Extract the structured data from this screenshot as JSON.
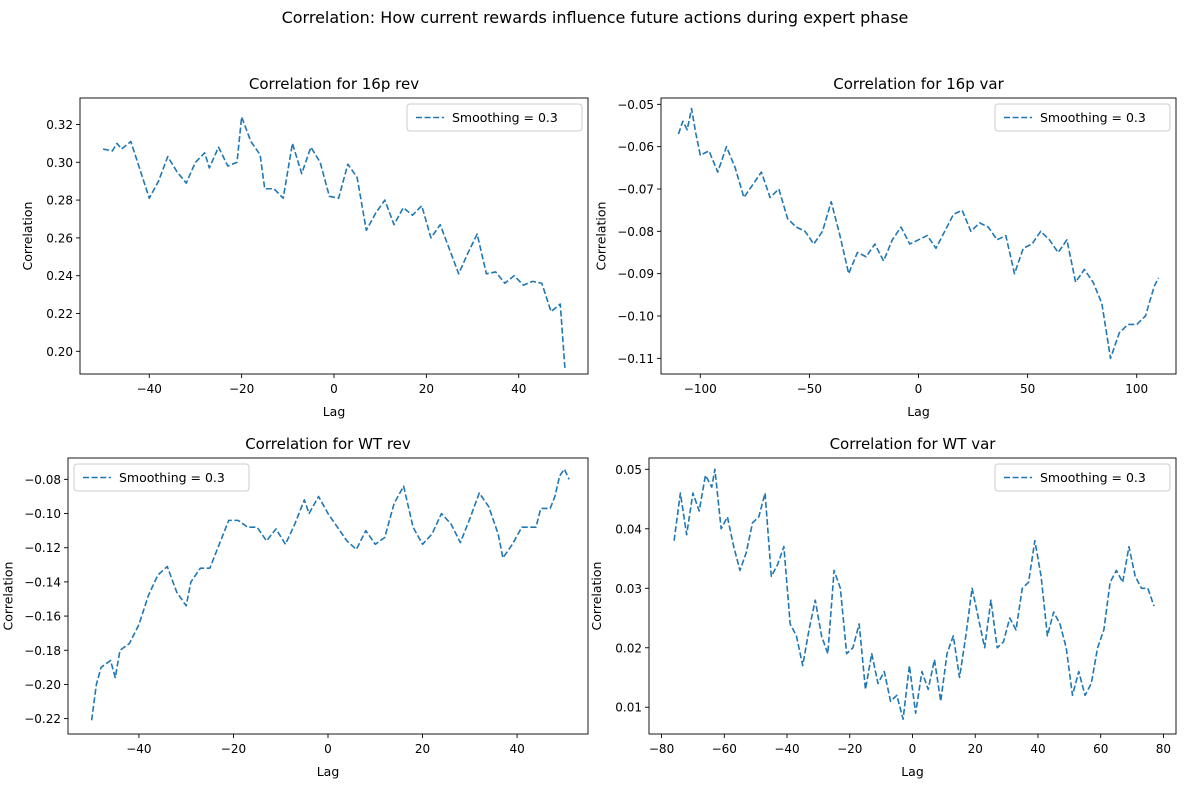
{
  "figure": {
    "title": "Correlation: How current rewards influence future actions during expert phase"
  },
  "chart_data": [
    {
      "type": "line",
      "title": "Correlation for 16p rev",
      "xlabel": "Lag",
      "ylabel": "Correlation",
      "xlim": [
        -55,
        55
      ],
      "ylim": [
        0.188,
        0.334
      ],
      "xticks": [
        -40,
        -20,
        0,
        20,
        40
      ],
      "yticks": [
        0.2,
        0.22,
        0.24,
        0.26,
        0.28,
        0.3,
        0.32
      ],
      "legend_position": "upper right",
      "line_color": "#1f77b4",
      "series": [
        {
          "name": "Smoothing = 0.3",
          "points": [
            [
              -50,
              0.307
            ],
            [
              -48,
              0.306
            ],
            [
              -47,
              0.31
            ],
            [
              -46,
              0.307
            ],
            [
              -44,
              0.311
            ],
            [
              -42,
              0.296
            ],
            [
              -40,
              0.281
            ],
            [
              -38,
              0.29
            ],
            [
              -36,
              0.303
            ],
            [
              -34,
              0.295
            ],
            [
              -32,
              0.289
            ],
            [
              -30,
              0.3
            ],
            [
              -28,
              0.305
            ],
            [
              -27,
              0.297
            ],
            [
              -25,
              0.308
            ],
            [
              -23,
              0.298
            ],
            [
              -21,
              0.3
            ],
            [
              -20,
              0.324
            ],
            [
              -18,
              0.311
            ],
            [
              -16,
              0.304
            ],
            [
              -15,
              0.286
            ],
            [
              -13,
              0.286
            ],
            [
              -11,
              0.281
            ],
            [
              -9,
              0.31
            ],
            [
              -7,
              0.294
            ],
            [
              -5,
              0.308
            ],
            [
              -3,
              0.3
            ],
            [
              -1,
              0.282
            ],
            [
              1,
              0.281
            ],
            [
              3,
              0.299
            ],
            [
              5,
              0.292
            ],
            [
              7,
              0.264
            ],
            [
              9,
              0.273
            ],
            [
              11,
              0.28
            ],
            [
              13,
              0.267
            ],
            [
              15,
              0.276
            ],
            [
              17,
              0.272
            ],
            [
              19,
              0.277
            ],
            [
              21,
              0.26
            ],
            [
              23,
              0.267
            ],
            [
              25,
              0.254
            ],
            [
              27,
              0.241
            ],
            [
              29,
              0.252
            ],
            [
              31,
              0.262
            ],
            [
              33,
              0.241
            ],
            [
              35,
              0.242
            ],
            [
              37,
              0.236
            ],
            [
              39,
              0.24
            ],
            [
              41,
              0.235
            ],
            [
              43,
              0.237
            ],
            [
              45,
              0.236
            ],
            [
              47,
              0.221
            ],
            [
              49,
              0.225
            ],
            [
              50,
              0.191
            ]
          ]
        }
      ]
    },
    {
      "type": "line",
      "title": "Correlation for 16p var",
      "xlabel": "Lag",
      "ylabel": "Correlation",
      "xlim": [
        -118,
        118
      ],
      "ylim": [
        -0.1137,
        -0.0485
      ],
      "xticks": [
        -100,
        -50,
        0,
        50,
        100
      ],
      "yticks": [
        -0.11,
        -0.1,
        -0.09,
        -0.08,
        -0.07,
        -0.06,
        -0.05
      ],
      "legend_position": "upper right",
      "line_color": "#1f77b4",
      "series": [
        {
          "name": "Smoothing = 0.3",
          "points": [
            [
              -110,
              -0.057
            ],
            [
              -108,
              -0.054
            ],
            [
              -106,
              -0.056
            ],
            [
              -104,
              -0.051
            ],
            [
              -102,
              -0.057
            ],
            [
              -100,
              -0.062
            ],
            [
              -96,
              -0.061
            ],
            [
              -92,
              -0.066
            ],
            [
              -88,
              -0.06
            ],
            [
              -84,
              -0.065
            ],
            [
              -80,
              -0.072
            ],
            [
              -76,
              -0.069
            ],
            [
              -72,
              -0.066
            ],
            [
              -68,
              -0.072
            ],
            [
              -64,
              -0.07
            ],
            [
              -60,
              -0.077
            ],
            [
              -56,
              -0.079
            ],
            [
              -52,
              -0.08
            ],
            [
              -48,
              -0.083
            ],
            [
              -44,
              -0.08
            ],
            [
              -40,
              -0.073
            ],
            [
              -36,
              -0.081
            ],
            [
              -32,
              -0.09
            ],
            [
              -28,
              -0.085
            ],
            [
              -24,
              -0.086
            ],
            [
              -20,
              -0.083
            ],
            [
              -16,
              -0.087
            ],
            [
              -12,
              -0.082
            ],
            [
              -8,
              -0.079
            ],
            [
              -4,
              -0.083
            ],
            [
              0,
              -0.082
            ],
            [
              4,
              -0.081
            ],
            [
              8,
              -0.084
            ],
            [
              12,
              -0.08
            ],
            [
              16,
              -0.076
            ],
            [
              20,
              -0.075
            ],
            [
              24,
              -0.08
            ],
            [
              28,
              -0.078
            ],
            [
              32,
              -0.079
            ],
            [
              36,
              -0.082
            ],
            [
              40,
              -0.081
            ],
            [
              44,
              -0.09
            ],
            [
              48,
              -0.084
            ],
            [
              52,
              -0.083
            ],
            [
              56,
              -0.08
            ],
            [
              60,
              -0.082
            ],
            [
              64,
              -0.085
            ],
            [
              68,
              -0.082
            ],
            [
              72,
              -0.092
            ],
            [
              76,
              -0.089
            ],
            [
              80,
              -0.092
            ],
            [
              84,
              -0.097
            ],
            [
              88,
              -0.11
            ],
            [
              92,
              -0.104
            ],
            [
              96,
              -0.102
            ],
            [
              100,
              -0.102
            ],
            [
              104,
              -0.1
            ],
            [
              108,
              -0.093
            ],
            [
              110,
              -0.091
            ]
          ]
        }
      ]
    },
    {
      "type": "line",
      "title": "Correlation for WT rev",
      "xlabel": "Lag",
      "ylabel": "Correlation",
      "xlim": [
        -55,
        55
      ],
      "ylim": [
        -0.229,
        -0.0675
      ],
      "xticks": [
        -40,
        -20,
        0,
        20,
        40
      ],
      "yticks": [
        -0.22,
        -0.2,
        -0.18,
        -0.16,
        -0.14,
        -0.12,
        -0.1,
        -0.08
      ],
      "legend_position": "upper left",
      "line_color": "#1f77b4",
      "series": [
        {
          "name": "Smoothing = 0.3",
          "points": [
            [
              -50,
              -0.221
            ],
            [
              -49,
              -0.2
            ],
            [
              -48,
              -0.19
            ],
            [
              -46,
              -0.186
            ],
            [
              -45,
              -0.196
            ],
            [
              -44,
              -0.18
            ],
            [
              -42,
              -0.176
            ],
            [
              -40,
              -0.165
            ],
            [
              -38,
              -0.148
            ],
            [
              -36,
              -0.136
            ],
            [
              -34,
              -0.131
            ],
            [
              -32,
              -0.146
            ],
            [
              -30,
              -0.154
            ],
            [
              -29,
              -0.14
            ],
            [
              -27,
              -0.132
            ],
            [
              -25,
              -0.132
            ],
            [
              -23,
              -0.118
            ],
            [
              -21,
              -0.104
            ],
            [
              -19,
              -0.104
            ],
            [
              -17,
              -0.108
            ],
            [
              -15,
              -0.108
            ],
            [
              -13,
              -0.116
            ],
            [
              -11,
              -0.109
            ],
            [
              -9,
              -0.118
            ],
            [
              -7,
              -0.106
            ],
            [
              -5,
              -0.092
            ],
            [
              -4,
              -0.1
            ],
            [
              -2,
              -0.09
            ],
            [
              0,
              -0.1
            ],
            [
              2,
              -0.108
            ],
            [
              4,
              -0.116
            ],
            [
              6,
              -0.121
            ],
            [
              8,
              -0.11
            ],
            [
              10,
              -0.118
            ],
            [
              12,
              -0.114
            ],
            [
              14,
              -0.094
            ],
            [
              16,
              -0.084
            ],
            [
              18,
              -0.108
            ],
            [
              20,
              -0.118
            ],
            [
              22,
              -0.112
            ],
            [
              24,
              -0.1
            ],
            [
              26,
              -0.106
            ],
            [
              28,
              -0.117
            ],
            [
              30,
              -0.103
            ],
            [
              32,
              -0.088
            ],
            [
              34,
              -0.096
            ],
            [
              36,
              -0.112
            ],
            [
              37,
              -0.126
            ],
            [
              39,
              -0.118
            ],
            [
              41,
              -0.108
            ],
            [
              44,
              -0.108
            ],
            [
              45,
              -0.097
            ],
            [
              47,
              -0.097
            ],
            [
              48,
              -0.09
            ],
            [
              49,
              -0.078
            ],
            [
              50,
              -0.074
            ],
            [
              51,
              -0.08
            ]
          ]
        }
      ]
    },
    {
      "type": "line",
      "title": "Correlation for WT var",
      "xlabel": "Lag",
      "ylabel": "Correlation",
      "xlim": [
        -84,
        84
      ],
      "ylim": [
        0.0055,
        0.0519
      ],
      "xticks": [
        -80,
        -60,
        -40,
        -20,
        0,
        20,
        40,
        60,
        80
      ],
      "yticks": [
        0.01,
        0.02,
        0.03,
        0.04,
        0.05
      ],
      "legend_position": "upper right",
      "line_color": "#1f77b4",
      "series": [
        {
          "name": "Smoothing = 0.3",
          "points": [
            [
              -76,
              0.038
            ],
            [
              -74,
              0.046
            ],
            [
              -72,
              0.039
            ],
            [
              -70,
              0.046
            ],
            [
              -68,
              0.043
            ],
            [
              -66,
              0.049
            ],
            [
              -64,
              0.047
            ],
            [
              -63,
              0.05
            ],
            [
              -61,
              0.04
            ],
            [
              -59,
              0.042
            ],
            [
              -57,
              0.037
            ],
            [
              -55,
              0.033
            ],
            [
              -53,
              0.036
            ],
            [
              -51,
              0.041
            ],
            [
              -49,
              0.042
            ],
            [
              -47,
              0.046
            ],
            [
              -45,
              0.032
            ],
            [
              -43,
              0.034
            ],
            [
              -41,
              0.037
            ],
            [
              -39,
              0.024
            ],
            [
              -37,
              0.022
            ],
            [
              -35,
              0.017
            ],
            [
              -33,
              0.023
            ],
            [
              -31,
              0.028
            ],
            [
              -29,
              0.022
            ],
            [
              -27,
              0.019
            ],
            [
              -25,
              0.033
            ],
            [
              -23,
              0.03
            ],
            [
              -21,
              0.019
            ],
            [
              -19,
              0.02
            ],
            [
              -17,
              0.024
            ],
            [
              -15,
              0.013
            ],
            [
              -13,
              0.019
            ],
            [
              -11,
              0.014
            ],
            [
              -9,
              0.016
            ],
            [
              -7,
              0.011
            ],
            [
              -5,
              0.012
            ],
            [
              -3,
              0.008
            ],
            [
              -1,
              0.017
            ],
            [
              1,
              0.009
            ],
            [
              3,
              0.016
            ],
            [
              5,
              0.013
            ],
            [
              7,
              0.018
            ],
            [
              9,
              0.011
            ],
            [
              11,
              0.019
            ],
            [
              13,
              0.022
            ],
            [
              15,
              0.015
            ],
            [
              17,
              0.022
            ],
            [
              19,
              0.03
            ],
            [
              21,
              0.025
            ],
            [
              23,
              0.02
            ],
            [
              25,
              0.028
            ],
            [
              27,
              0.02
            ],
            [
              29,
              0.021
            ],
            [
              31,
              0.025
            ],
            [
              33,
              0.023
            ],
            [
              35,
              0.03
            ],
            [
              37,
              0.031
            ],
            [
              39,
              0.038
            ],
            [
              41,
              0.032
            ],
            [
              43,
              0.022
            ],
            [
              45,
              0.026
            ],
            [
              47,
              0.024
            ],
            [
              49,
              0.02
            ],
            [
              51,
              0.012
            ],
            [
              53,
              0.016
            ],
            [
              55,
              0.012
            ],
            [
              57,
              0.014
            ],
            [
              59,
              0.02
            ],
            [
              61,
              0.023
            ],
            [
              63,
              0.031
            ],
            [
              65,
              0.033
            ],
            [
              67,
              0.031
            ],
            [
              69,
              0.037
            ],
            [
              71,
              0.032
            ],
            [
              73,
              0.03
            ],
            [
              75,
              0.03
            ],
            [
              77,
              0.027
            ]
          ]
        }
      ]
    }
  ]
}
